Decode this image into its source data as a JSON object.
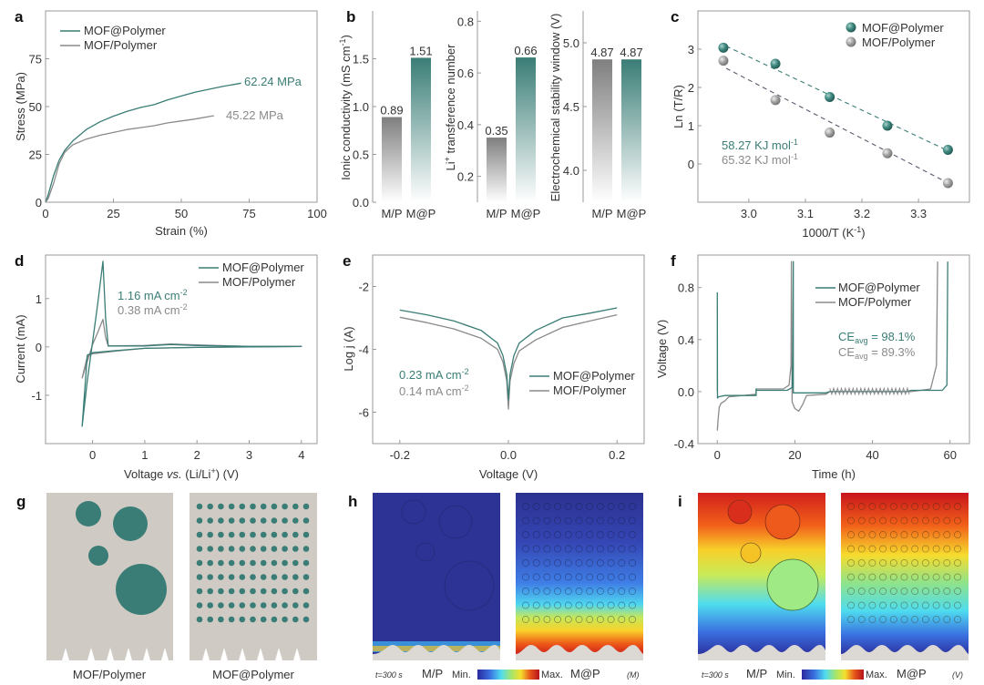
{
  "colors": {
    "teal": "#3a7d76",
    "gray": "#8a8a8a",
    "lightgray": "#cfcbc4",
    "text": "#333333"
  },
  "chart_data": [
    {
      "panel": "a",
      "type": "line",
      "xlabel": "Strain (%)",
      "ylabel": "Stress (MPa)",
      "xlim": [
        0,
        100
      ],
      "ylim": [
        0,
        100
      ],
      "xticks": [
        0,
        25,
        50,
        75,
        100
      ],
      "yticks": [
        0,
        25,
        50,
        75
      ],
      "legend": "top-left",
      "series": [
        {
          "name": "MOF@Polymer",
          "color": "teal",
          "x": [
            0,
            1,
            3,
            5,
            7,
            10,
            15,
            20,
            25,
            30,
            35,
            40,
            45,
            50,
            55,
            60,
            65,
            72
          ],
          "y": [
            0,
            4,
            14,
            22,
            27,
            32,
            38,
            42,
            45,
            47.5,
            49.5,
            51,
            53.5,
            55.5,
            57.5,
            59,
            60.5,
            62.24
          ],
          "annotation": "62.24 MPa"
        },
        {
          "name": "MOF/Polymer",
          "color": "gray",
          "x": [
            0,
            1,
            3,
            5,
            7,
            10,
            15,
            20,
            25,
            30,
            35,
            40,
            45,
            50,
            55,
            62
          ],
          "y": [
            0,
            2,
            10,
            20,
            26,
            30,
            33,
            35,
            36.5,
            38,
            39,
            40,
            41.5,
            42.5,
            43.5,
            45.22
          ],
          "annotation": "45.22 MPa"
        }
      ]
    },
    {
      "panel": "b1",
      "type": "bar",
      "categories": [
        "M/P",
        "M@P"
      ],
      "values": [
        0.89,
        1.51
      ],
      "labels": [
        "0.89",
        "1.51"
      ],
      "ylabel": "Ionic conductivity (mS cm-1)",
      "ylim": [
        0,
        2.0
      ],
      "yticks": [
        "0.0",
        "0.5",
        "1.0",
        "1.5"
      ]
    },
    {
      "panel": "b2",
      "type": "bar",
      "categories": [
        "M/P",
        "M@P"
      ],
      "values": [
        0.35,
        0.66
      ],
      "labels": [
        "0.35",
        "0.66"
      ],
      "ylabel": "Li+ transference number",
      "ylim": [
        0.1,
        0.84
      ],
      "yticks": [
        "0.2",
        "0.4",
        "0.6",
        "0.8"
      ]
    },
    {
      "panel": "b3",
      "type": "bar",
      "categories": [
        "M/P",
        "M@P"
      ],
      "values": [
        4.87,
        4.87
      ],
      "labels": [
        "4.87",
        "4.87"
      ],
      "ylabel": "Electrochemical stability window (V)",
      "ylim": [
        3.75,
        5.25
      ],
      "yticks": [
        "4.0",
        "4.5",
        "5.0"
      ]
    },
    {
      "panel": "c",
      "type": "scatter",
      "xlabel": "1000/T (K-1)",
      "ylabel": "Ln (T/R)",
      "xlim": [
        2.91,
        3.39
      ],
      "ylim": [
        -1,
        4
      ],
      "xticks": [
        "3.0",
        "3.1",
        "3.2",
        "3.3"
      ],
      "yticks": [
        "0",
        "1",
        "2",
        "3"
      ],
      "legend": "top-right",
      "series": [
        {
          "name": "MOF@Polymer",
          "color": "teal",
          "x": [
            2.955,
            3.047,
            3.143,
            3.245,
            3.352
          ],
          "y": [
            3.04,
            2.62,
            1.75,
            1.0,
            0.37
          ],
          "fit": [
            [
              2.96,
              3.08
            ],
            [
              3.35,
              0.36
            ]
          ],
          "annotation": "58.27 KJ mol -1"
        },
        {
          "name": "MOF/Polymer",
          "color": "gray",
          "x": [
            2.955,
            3.047,
            3.143,
            3.245,
            3.352
          ],
          "y": [
            2.7,
            1.67,
            0.82,
            0.28,
            -0.5
          ],
          "fit": [
            [
              2.96,
              2.5
            ],
            [
              3.35,
              -0.48
            ]
          ],
          "annotation": "65.32 KJ mol -1"
        }
      ]
    },
    {
      "panel": "d",
      "type": "line",
      "xlabel": "Voltage vs. (Li/Li+) (V)",
      "ylabel": "Current (mA)",
      "xlim": [
        -0.9,
        4.3
      ],
      "ylim": [
        -2.0,
        1.9
      ],
      "xticks": [
        "0",
        "1",
        "2",
        "3",
        "4"
      ],
      "yticks": [
        "-1",
        "0",
        "1"
      ],
      "legend": "top-right",
      "series": [
        {
          "name": "MOF@Polymer",
          "color": "teal",
          "x": [
            -0.2,
            -0.1,
            0,
            0.1,
            0.2,
            0.25,
            0.3,
            1,
            1.5,
            2,
            3,
            4,
            3,
            2,
            1,
            0.5,
            0,
            -0.1,
            -0.2
          ],
          "y": [
            -1.65,
            -0.7,
            0.1,
            0.9,
            1.77,
            0.6,
            0.02,
            0.02,
            0.05,
            0.03,
            0.01,
            0.01,
            0,
            -0.01,
            -0.03,
            -0.07,
            -0.12,
            -0.17,
            -1.65
          ],
          "annotation": "1.16 mA cm-2"
        },
        {
          "name": "MOF/Polymer",
          "color": "gray",
          "x": [
            -0.2,
            -0.1,
            0,
            0.1,
            0.2,
            0.25,
            0.3,
            1,
            1.5,
            2,
            3,
            4,
            3,
            2,
            1,
            0.5,
            0,
            -0.1,
            -0.2
          ],
          "y": [
            -0.65,
            -0.3,
            0.05,
            0.3,
            0.57,
            0.2,
            0.02,
            0.03,
            0.06,
            0.04,
            0.01,
            0.01,
            0,
            -0.01,
            -0.03,
            -0.08,
            -0.14,
            -0.2,
            -0.65
          ],
          "annotation": "0.38 mA cm-2"
        }
      ]
    },
    {
      "panel": "e",
      "type": "line",
      "xlabel": "Voltage (V)",
      "ylabel": "Log j (A)",
      "xlim": [
        -0.25,
        0.25
      ],
      "ylim": [
        -7,
        -1
      ],
      "xticks": [
        "-0.2",
        "0.0",
        "0.2"
      ],
      "yticks": [
        "-2",
        "-4",
        "-6"
      ],
      "legend": "center-right",
      "series": [
        {
          "name": "MOF@Polymer",
          "color": "teal",
          "x": [
            -0.2,
            -0.15,
            -0.1,
            -0.05,
            -0.02,
            -0.01,
            -0.003,
            0,
            0.003,
            0.01,
            0.02,
            0.05,
            0.1,
            0.15,
            0.2
          ],
          "y": [
            -2.75,
            -2.9,
            -3.1,
            -3.4,
            -3.8,
            -4.2,
            -4.8,
            -5.6,
            -4.8,
            -4.2,
            -3.8,
            -3.4,
            -3.0,
            -2.85,
            -2.68
          ],
          "annotation": "0.23 mA cm-2"
        },
        {
          "name": "MOF/Polymer",
          "color": "gray",
          "x": [
            -0.2,
            -0.15,
            -0.1,
            -0.05,
            -0.02,
            -0.01,
            -0.003,
            0,
            0.003,
            0.01,
            0.02,
            0.05,
            0.1,
            0.15,
            0.2
          ],
          "y": [
            -2.98,
            -3.15,
            -3.35,
            -3.65,
            -4.0,
            -4.4,
            -5.0,
            -5.9,
            -5.0,
            -4.45,
            -4.05,
            -3.7,
            -3.3,
            -3.1,
            -2.9
          ],
          "annotation": "0.14 mA cm-2"
        }
      ]
    },
    {
      "panel": "f",
      "type": "line",
      "xlabel": "Time (h)",
      "ylabel": "Voltage (V)",
      "xlim": [
        -5,
        65
      ],
      "ylim": [
        -0.4,
        1.05
      ],
      "xticks": [
        "0",
        "20",
        "40",
        "60"
      ],
      "yticks": [
        "-0.4",
        "0.0",
        "0.4",
        "0.8"
      ],
      "legend": "top-right",
      "series": [
        {
          "name": "MOF@Polymer",
          "color": "teal",
          "annotation": "CE avg = 98.1%",
          "x": [
            0,
            0,
            0.05,
            0.3,
            2,
            10,
            10,
            10.1,
            18,
            19.3,
            19.5,
            19.6,
            19.6,
            19.7,
            28,
            29,
            49,
            50,
            58,
            59.2,
            59.4
          ],
          "y": [
            0,
            0.76,
            -0.05,
            -0.04,
            -0.03,
            -0.03,
            0.02,
            0.01,
            0.01,
            0.03,
            0.3,
            1.0,
            -0.01,
            -0.01,
            -0.01,
            0.0,
            0.0,
            0.01,
            0.01,
            0.05,
            1.0
          ]
        },
        {
          "name": "MOF/Polymer",
          "color": "gray",
          "annotation": "CE avg = 89.3%",
          "x": [
            0,
            0.2,
            0.5,
            1,
            2,
            3,
            10,
            10,
            17,
            18.5,
            19,
            19.1,
            19.3,
            20,
            21,
            22,
            23,
            28,
            29,
            49,
            50,
            55,
            56.5,
            56.8
          ],
          "y": [
            -0.3,
            -0.22,
            -0.12,
            -0.09,
            -0.07,
            -0.04,
            -0.02,
            0.02,
            0.02,
            0.05,
            0.2,
            1.0,
            -0.08,
            -0.13,
            -0.15,
            -0.1,
            -0.03,
            -0.02,
            0.0,
            0.0,
            0.0,
            0.02,
            0.2,
            1.0
          ]
        }
      ]
    }
  ],
  "panels": {
    "g": {
      "letter": "g",
      "left_label": "MOF/Polymer",
      "right_label": "MOF@Polymer"
    },
    "h": {
      "letter": "h",
      "time": "t=300 s",
      "left": "M/P",
      "min": "Min.",
      "max": "Max.",
      "right": "M@P",
      "unit": "(M)"
    },
    "i": {
      "letter": "i",
      "time": "t=300 s",
      "left": "M/P",
      "min": "Min.",
      "max": "Max.",
      "right": "M@P",
      "unit": "(V)"
    }
  },
  "letters": {
    "a": "a",
    "b": "b",
    "c": "c",
    "d": "d",
    "e": "e",
    "f": "f"
  },
  "legend": {
    "mofat": "MOF@Polymer",
    "mofslash": "MOF/Polymer"
  },
  "annotations": {
    "a_teal": "62.24 MPa",
    "a_gray": "45.22 MPa",
    "c_teal": "58.27 KJ mol",
    "c_gray": "65.32 KJ mol",
    "c_sup": "-1",
    "d_teal": "1.16 mA cm",
    "d_gray": "0.38 mA cm",
    "sup_m2": "-2",
    "e_teal": "0.23 mA cm",
    "e_gray": "0.14 mA cm",
    "f_teal_pre": "CE",
    "f_sub": "avg",
    "f_teal_post": " = 98.1%",
    "f_gray_post": " = 89.3%"
  },
  "axis_labels": {
    "a_x": "Strain (%)",
    "a_y": "Stress (MPa)",
    "b1_y": "Ionic conductivity (mS cm",
    "b1_y_sup": "-1",
    "b1_y_end": ")",
    "b2_y_pre": "Li",
    "b2_y_sup": "+",
    "b2_y": " transference number",
    "b3_y": "Electrochemical stability window (V)",
    "c_x": "1000/T (K",
    "c_x_sup": "-1",
    "c_x_end": ")",
    "c_y": "Ln (T/R)",
    "d_x_pre": "Voltage ",
    "d_x_it": "vs.",
    "d_x_mid": " (Li/Li",
    "d_x_sup": "+",
    "d_x_end": ") (V)",
    "d_y": "Current (mA)",
    "e_x": "Voltage (V)",
    "e_y": "Log j (A)",
    "f_x": "Time (h)",
    "f_y": "Voltage (V)"
  }
}
